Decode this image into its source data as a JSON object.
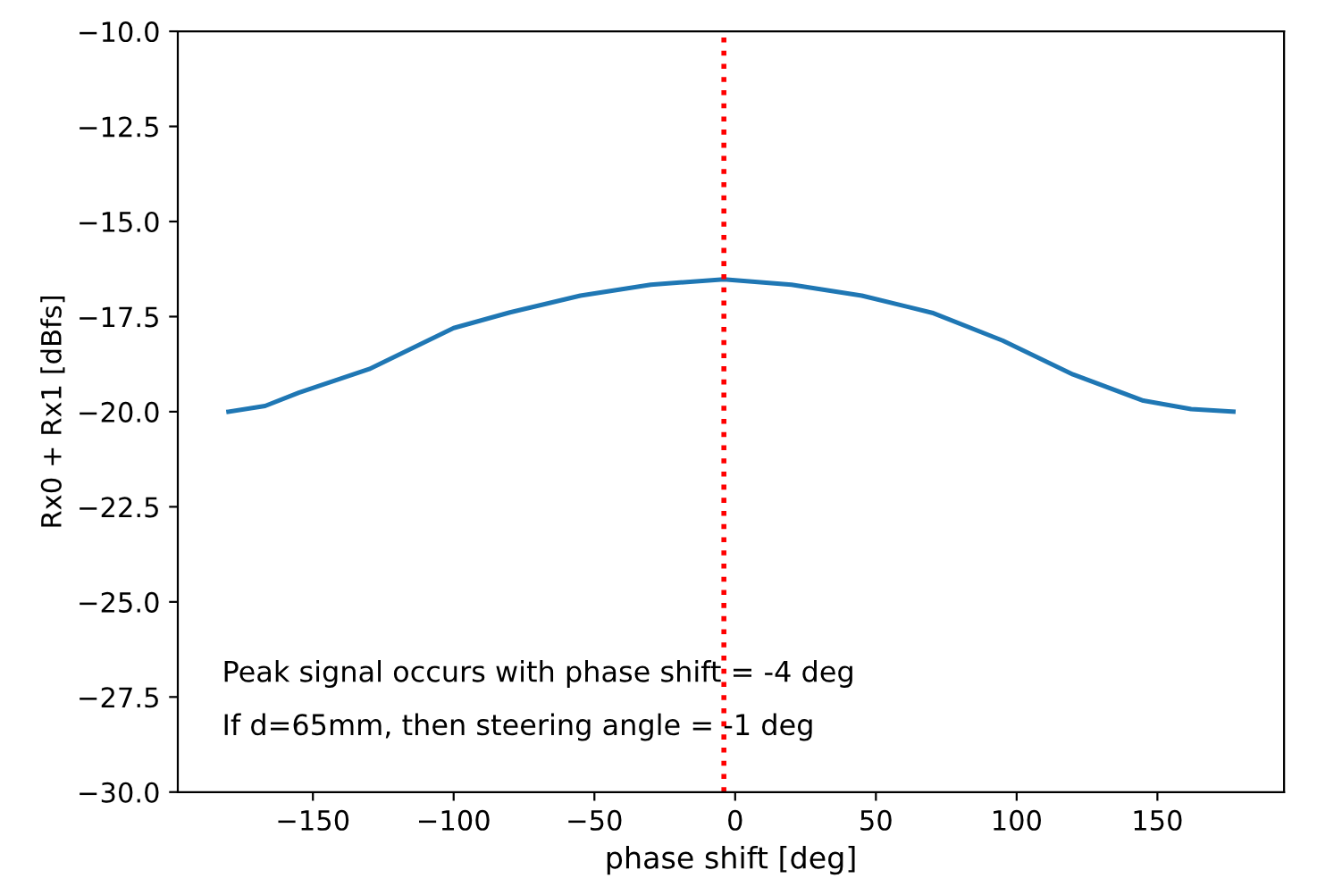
{
  "chart_data": {
    "type": "line",
    "xlabel": "phase shift [deg]",
    "ylabel": "Rx0 + Rx1 [dBfs]",
    "x": [
      -180,
      -167,
      -155,
      -130,
      -100,
      -80,
      -55,
      -30,
      -4,
      20,
      45,
      70,
      95,
      120,
      145,
      162,
      177
    ],
    "series": [
      {
        "color": "#1f77b4",
        "values": [
          -20.0,
          -19.85,
          -19.5,
          -18.88,
          -17.8,
          -17.39,
          -16.95,
          -16.66,
          -16.52,
          -16.66,
          -16.95,
          -17.4,
          -18.13,
          -19.02,
          -19.71,
          -19.93,
          -20.0
        ]
      }
    ],
    "xlim": [
      -198,
      195
    ],
    "xticks": [
      -150,
      -100,
      -50,
      0,
      50,
      100,
      150
    ],
    "ylim": [
      -30,
      -10
    ],
    "yticks": [
      {
        "value": -30,
        "label": "−30.0"
      },
      {
        "value": -27.5,
        "label": "−27.5"
      },
      {
        "value": -25,
        "label": "−25.0"
      },
      {
        "value": -22.5,
        "label": "−22.5"
      },
      {
        "value": -20,
        "label": "−20.0"
      },
      {
        "value": -17.5,
        "label": "−17.5"
      },
      {
        "value": -15,
        "label": "−15.0"
      },
      {
        "value": -12.5,
        "label": "−12.5"
      },
      {
        "value": -10,
        "label": "−10.0"
      }
    ],
    "ref_lines": [
      {
        "axis": "x",
        "value": -4,
        "color": "#ff0000",
        "line_style": "dotted"
      }
    ],
    "annotations": [
      "Peak signal occurs with phase shift = -4 deg",
      "If d=65mm, then steering angle = -1 deg"
    ],
    "grid": false,
    "legend": false
  }
}
